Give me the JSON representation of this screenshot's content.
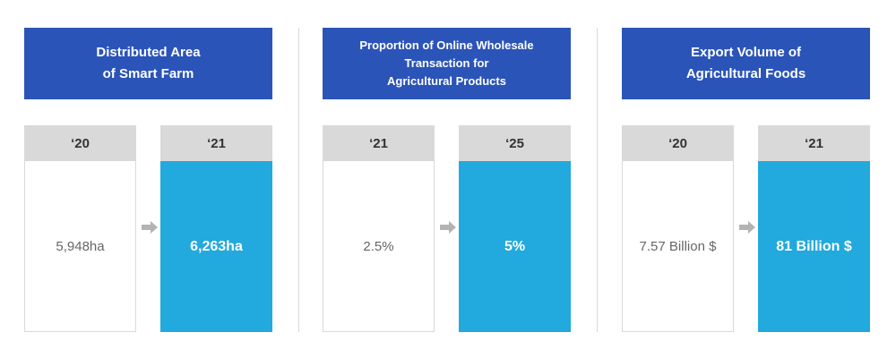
{
  "panels": [
    {
      "title": "Distributed Area\nof Smart Farm",
      "before": {
        "year": "‘20",
        "value": "5,948ha"
      },
      "after": {
        "year": "‘21",
        "value": "6,263ha"
      }
    },
    {
      "title": "Proportion of Online Wholesale\nTransaction for\nAgricultural Products",
      "before": {
        "year": "‘21",
        "value": "2.5%"
      },
      "after": {
        "year": "‘25",
        "value": "5%"
      }
    },
    {
      "title": "Export Volume of\nAgricultural Foods",
      "before": {
        "year": "‘20",
        "value": "7.57 Billion $"
      },
      "after": {
        "year": "‘21",
        "value": "81 Billion $"
      }
    }
  ],
  "colors": {
    "title_bg": "#2b54b8",
    "header_bg": "#d9d9d9",
    "highlight_bg": "#22a9dd",
    "arrow": "#b3b3b3"
  },
  "icons": {
    "arrow": "right-arrow-icon"
  }
}
